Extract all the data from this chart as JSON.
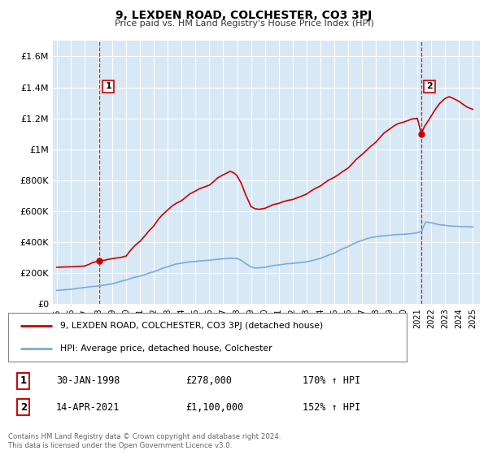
{
  "title": "9, LEXDEN ROAD, COLCHESTER, CO3 3PJ",
  "subtitle": "Price paid vs. HM Land Registry's House Price Index (HPI)",
  "bg_color": "#d8e8f4",
  "red_color": "#cc0000",
  "blue_color": "#7aaadd",
  "ylim": [
    0,
    1700000
  ],
  "xlim_start": 1994.7,
  "xlim_end": 2025.5,
  "yticks": [
    0,
    200000,
    400000,
    600000,
    800000,
    1000000,
    1200000,
    1400000,
    1600000
  ],
  "ytick_labels": [
    "£0",
    "£200K",
    "£400K",
    "£600K",
    "£800K",
    "£1M",
    "£1.2M",
    "£1.4M",
    "£1.6M"
  ],
  "xticks": [
    1995,
    1996,
    1997,
    1998,
    1999,
    2000,
    2001,
    2002,
    2003,
    2004,
    2005,
    2006,
    2007,
    2008,
    2009,
    2010,
    2011,
    2012,
    2013,
    2014,
    2015,
    2016,
    2017,
    2018,
    2019,
    2020,
    2021,
    2022,
    2023,
    2024,
    2025
  ],
  "marker1_x": 1998.08,
  "marker1_y": 278000,
  "marker2_x": 2021.29,
  "marker2_y": 1100000,
  "legend_label_red": "9, LEXDEN ROAD, COLCHESTER, CO3 3PJ (detached house)",
  "legend_label_blue": "HPI: Average price, detached house, Colchester",
  "info1_label": "1",
  "info1_date": "30-JAN-1998",
  "info1_price": "£278,000",
  "info1_hpi": "170% ↑ HPI",
  "info2_label": "2",
  "info2_date": "14-APR-2021",
  "info2_price": "£1,100,000",
  "info2_hpi": "152% ↑ HPI",
  "footer": "Contains HM Land Registry data © Crown copyright and database right 2024.\nThis data is licensed under the Open Government Licence v3.0.",
  "red_line_x": [
    1995.0,
    1995.3,
    1995.6,
    1996.0,
    1996.3,
    1996.6,
    1997.0,
    1997.3,
    1997.6,
    1998.08,
    1998.4,
    1998.7,
    1999.0,
    1999.3,
    1999.6,
    2000.0,
    2000.3,
    2000.6,
    2001.0,
    2001.3,
    2001.6,
    2002.0,
    2002.3,
    2002.6,
    2003.0,
    2003.3,
    2003.6,
    2004.0,
    2004.3,
    2004.6,
    2005.0,
    2005.3,
    2005.6,
    2006.0,
    2006.3,
    2006.6,
    2007.0,
    2007.3,
    2007.5,
    2007.8,
    2008.0,
    2008.3,
    2008.6,
    2009.0,
    2009.3,
    2009.6,
    2010.0,
    2010.3,
    2010.6,
    2011.0,
    2011.3,
    2011.6,
    2012.0,
    2012.3,
    2012.6,
    2013.0,
    2013.3,
    2013.6,
    2014.0,
    2014.3,
    2014.6,
    2015.0,
    2015.3,
    2015.6,
    2016.0,
    2016.3,
    2016.6,
    2017.0,
    2017.3,
    2017.6,
    2018.0,
    2018.3,
    2018.6,
    2019.0,
    2019.3,
    2019.6,
    2020.0,
    2020.3,
    2020.6,
    2021.0,
    2021.29,
    2021.5,
    2021.8,
    2022.0,
    2022.3,
    2022.6,
    2023.0,
    2023.3,
    2023.6,
    2024.0,
    2024.3,
    2024.6,
    2025.0
  ],
  "red_line_y": [
    237000,
    238000,
    239000,
    240000,
    241000,
    243000,
    245000,
    255000,
    268000,
    278000,
    282000,
    288000,
    293000,
    297000,
    300000,
    310000,
    345000,
    375000,
    405000,
    435000,
    468000,
    505000,
    545000,
    575000,
    608000,
    632000,
    650000,
    668000,
    690000,
    712000,
    730000,
    745000,
    755000,
    768000,
    790000,
    815000,
    835000,
    848000,
    858000,
    845000,
    828000,
    780000,
    710000,
    630000,
    615000,
    612000,
    618000,
    630000,
    642000,
    650000,
    660000,
    668000,
    675000,
    685000,
    695000,
    710000,
    728000,
    745000,
    762000,
    782000,
    800000,
    818000,
    835000,
    855000,
    878000,
    905000,
    935000,
    965000,
    990000,
    1015000,
    1045000,
    1075000,
    1105000,
    1130000,
    1150000,
    1165000,
    1175000,
    1185000,
    1195000,
    1200000,
    1100000,
    1145000,
    1185000,
    1215000,
    1258000,
    1295000,
    1328000,
    1340000,
    1328000,
    1310000,
    1290000,
    1272000,
    1258000
  ],
  "blue_line_x": [
    1995.0,
    1995.3,
    1995.6,
    1996.0,
    1996.3,
    1996.6,
    1997.0,
    1997.3,
    1997.6,
    1998.0,
    1998.3,
    1998.6,
    1999.0,
    1999.3,
    1999.6,
    2000.0,
    2000.3,
    2000.6,
    2001.0,
    2001.3,
    2001.6,
    2002.0,
    2002.3,
    2002.6,
    2003.0,
    2003.3,
    2003.6,
    2004.0,
    2004.3,
    2004.6,
    2005.0,
    2005.3,
    2005.6,
    2006.0,
    2006.3,
    2006.6,
    2007.0,
    2007.3,
    2007.6,
    2008.0,
    2008.3,
    2008.6,
    2009.0,
    2009.3,
    2009.6,
    2010.0,
    2010.3,
    2010.6,
    2011.0,
    2011.3,
    2011.6,
    2012.0,
    2012.3,
    2012.6,
    2013.0,
    2013.3,
    2013.6,
    2014.0,
    2014.3,
    2014.6,
    2015.0,
    2015.3,
    2015.6,
    2016.0,
    2016.3,
    2016.6,
    2017.0,
    2017.3,
    2017.6,
    2018.0,
    2018.3,
    2018.6,
    2019.0,
    2019.3,
    2019.6,
    2020.0,
    2020.3,
    2020.6,
    2021.0,
    2021.3,
    2021.6,
    2022.0,
    2022.3,
    2022.6,
    2023.0,
    2023.3,
    2023.6,
    2024.0,
    2024.3,
    2024.6,
    2025.0
  ],
  "blue_line_y": [
    88000,
    90000,
    92000,
    95000,
    98000,
    102000,
    106000,
    110000,
    113000,
    116000,
    120000,
    124000,
    130000,
    138000,
    146000,
    155000,
    164000,
    172000,
    180000,
    188000,
    198000,
    208000,
    218000,
    230000,
    240000,
    250000,
    258000,
    264000,
    268000,
    272000,
    275000,
    278000,
    280000,
    283000,
    286000,
    289000,
    292000,
    294000,
    295000,
    294000,
    282000,
    262000,
    240000,
    232000,
    234000,
    237000,
    242000,
    248000,
    252000,
    256000,
    260000,
    262000,
    265000,
    268000,
    272000,
    278000,
    285000,
    294000,
    305000,
    316000,
    328000,
    342000,
    356000,
    370000,
    385000,
    398000,
    410000,
    420000,
    428000,
    434000,
    438000,
    441000,
    444000,
    447000,
    449000,
    450000,
    452000,
    455000,
    460000,
    470000,
    530000,
    525000,
    518000,
    512000,
    508000,
    505000,
    503000,
    501000,
    500000,
    499000,
    498000
  ]
}
